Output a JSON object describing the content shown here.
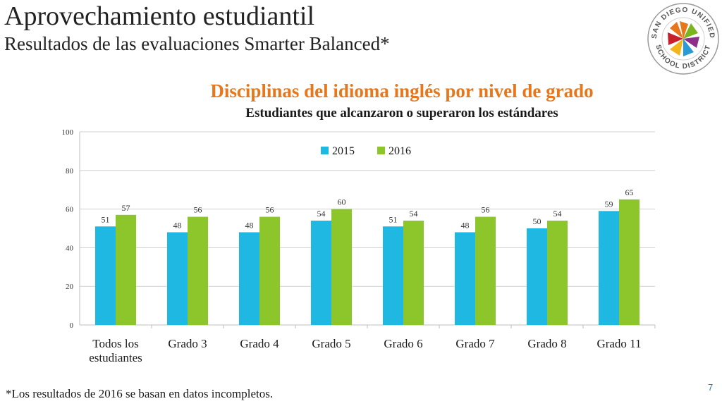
{
  "slide": {
    "title": "Aprovechamiento estudiantil",
    "subtitle": "Resultados de las evaluaciones Smarter Balanced*",
    "footnote": "*Los resultados de 2016 se basan en datos incompletos.",
    "page_number": "7"
  },
  "logo": {
    "text_top": "SAN DIEGO UNIFIED",
    "text_bottom": "SCHOOL DISTRICT",
    "colors": [
      "#e8761a",
      "#7ab51d",
      "#2a9bd6",
      "#8b2f8a",
      "#f2b61b",
      "#c8202a"
    ]
  },
  "colors": {
    "accent_title": "#e8761a",
    "series_2015": "#1fb8e3",
    "series_2016": "#8cc62b",
    "page_number": "#2a7ab5"
  },
  "chart_data": {
    "type": "bar",
    "title": "Disciplinas del idioma inglés por nivel de grado",
    "subtitle": "Estudiantes que alcanzaron o superaron los estándares",
    "categories": [
      [
        "Todos los",
        "estudiantes"
      ],
      [
        "Grado 3"
      ],
      [
        "Grado 4"
      ],
      [
        "Grado 5"
      ],
      [
        "Grado 6"
      ],
      [
        "Grado 7"
      ],
      [
        "Grado 8"
      ],
      [
        "Grado 11"
      ]
    ],
    "series": [
      {
        "name": "2015",
        "color": "#1fb8e3",
        "values": [
          51,
          48,
          48,
          54,
          51,
          48,
          50,
          59
        ]
      },
      {
        "name": "2016",
        "color": "#8cc62b",
        "values": [
          57,
          56,
          56,
          60,
          54,
          56,
          54,
          65
        ]
      }
    ],
    "ylim": [
      0,
      100
    ],
    "yticks": [
      0,
      20,
      40,
      60,
      80,
      100
    ],
    "grid": true,
    "legend": "top-center",
    "data_labels": true
  }
}
